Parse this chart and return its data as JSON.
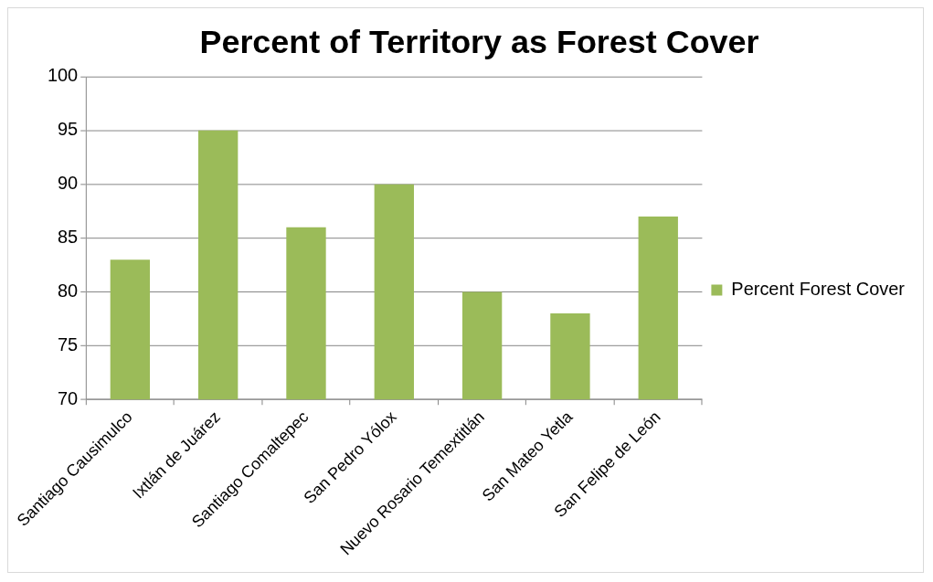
{
  "chart_data": {
    "type": "bar",
    "title": "Percent of Territory as Forest Cover",
    "categories": [
      "Santiago Causimulco",
      "Ixtlán de Juárez",
      "Santiago Comaltepec",
      "San Pedro Yólox",
      "Nuevo Rosario Temextitlán",
      "San Mateo Yetla",
      "San Felipe de León"
    ],
    "series": [
      {
        "name": "Percent Forest Cover",
        "color": "#9bbb59",
        "values": [
          83,
          95,
          86,
          90,
          80,
          78,
          87
        ]
      }
    ],
    "ylim": [
      70,
      100
    ],
    "yticks": [
      70,
      75,
      80,
      85,
      90,
      95,
      100
    ],
    "grid": "y",
    "legend": "right"
  }
}
